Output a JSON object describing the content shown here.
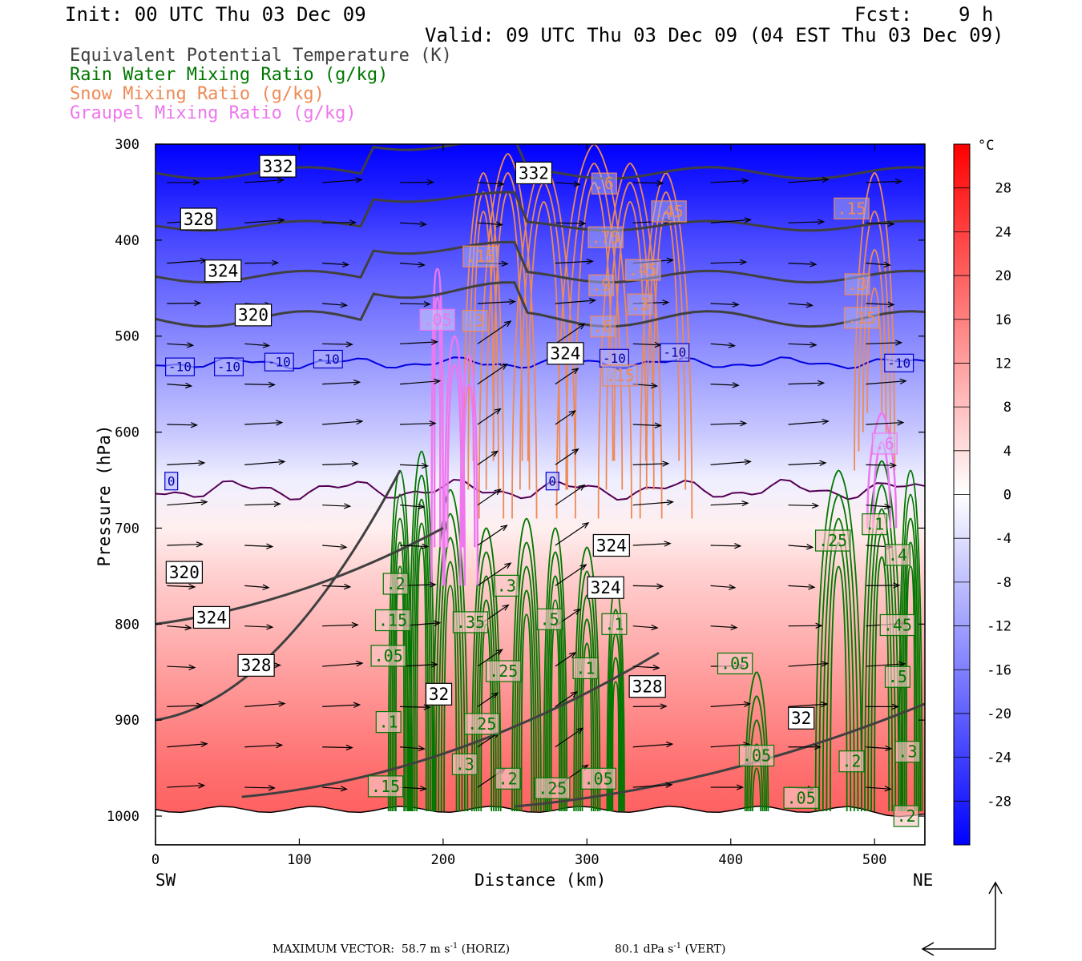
{
  "header": {
    "init": "Init: 00 UTC Thu 03 Dec 09",
    "fcst": "Fcst:    9 h",
    "valid": "Valid: 09 UTC Thu 03 Dec 09 (04 EST Thu 03 Dec 09)"
  },
  "legend": [
    {
      "label": "Equivalent Potential Temperature (K)",
      "color": "#404040"
    },
    {
      "label": "Rain Water Mixing Ratio (g/kg)",
      "color": "#007700"
    },
    {
      "label": "Snow Mixing Ratio (g/kg)",
      "color": "#ee8a55"
    },
    {
      "label": "Graupel Mixing Ratio (g/kg)",
      "color": "#ee77ee"
    }
  ],
  "chart_data": {
    "type": "heatmap",
    "xlabel": "Distance (km)",
    "ylabel": "Pressure (hPa)",
    "xlim": [
      0,
      535
    ],
    "ylim": [
      1030,
      300
    ],
    "y_scale": "linear",
    "x_ticks": [
      "0",
      "100",
      "200",
      "300",
      "400",
      "500"
    ],
    "y_ticks": [
      "300",
      "400",
      "500",
      "600",
      "700",
      "800",
      "900",
      "1000"
    ],
    "x_end_labels": {
      "left": "SW",
      "right": "NE"
    },
    "colorbar": {
      "unit": "°C",
      "ticks": [
        "28",
        "24",
        "20",
        "16",
        "12",
        "8",
        "4",
        "0",
        "-4",
        "-8",
        "-12",
        "-16",
        "-20",
        "-24",
        "-28"
      ],
      "min": -32,
      "max": 32,
      "cold_color": "#0000ff",
      "warm_color": "#ff0000",
      "neutral_color": "#ffffff"
    },
    "temperature_field": {
      "pressure_levels": [
        300,
        350,
        400,
        450,
        500,
        550,
        600,
        650,
        700,
        750,
        800,
        850,
        900,
        950,
        1000
      ],
      "temperature_c": [
        -32,
        -28,
        -23,
        -19,
        -15,
        -11,
        -7,
        -2,
        2,
        6,
        9,
        12,
        15,
        18,
        20
      ]
    },
    "zero_degree_pressure": 660,
    "minus10_pressure": 528,
    "theta_e_labels": [
      {
        "text": "332",
        "x": 85,
        "p": 323
      },
      {
        "text": "328",
        "x": 30,
        "p": 378
      },
      {
        "text": "324",
        "x": 47,
        "p": 432
      },
      {
        "text": "320",
        "x": 68,
        "p": 478
      },
      {
        "text": "332",
        "x": 263,
        "p": 330
      },
      {
        "text": "324",
        "x": 285,
        "p": 518
      },
      {
        "text": "320",
        "x": 20,
        "p": 746
      },
      {
        "text": "324",
        "x": 39,
        "p": 793
      },
      {
        "text": "328",
        "x": 70,
        "p": 843
      },
      {
        "text": "324",
        "x": 317,
        "p": 718
      },
      {
        "text": "324",
        "x": 313,
        "p": 762
      },
      {
        "text": "328",
        "x": 342,
        "p": 865
      },
      {
        "text": "32",
        "x": 197,
        "p": 873
      },
      {
        "text": "32",
        "x": 449,
        "p": 898
      }
    ],
    "isotherm_labels": [
      {
        "text": "-10",
        "x": 17,
        "p": 532
      },
      {
        "text": "-10",
        "x": 51,
        "p": 532
      },
      {
        "text": "-10",
        "x": 86,
        "p": 527
      },
      {
        "text": "-10",
        "x": 120,
        "p": 524
      },
      {
        "text": "-10",
        "x": 319,
        "p": 523
      },
      {
        "text": "-10",
        "x": 361,
        "p": 517
      },
      {
        "text": "-10",
        "x": 517,
        "p": 528
      },
      {
        "text": "0",
        "x": 11,
        "p": 651
      },
      {
        "text": "0",
        "x": 276,
        "p": 651
      }
    ],
    "snow_labels": [
      {
        "text": ".15",
        "x": 226,
        "p": 417
      },
      {
        "text": ".3",
        "x": 222,
        "p": 484
      },
      {
        "text": ".6",
        "x": 312,
        "p": 341
      },
      {
        "text": ".75",
        "x": 313,
        "p": 397
      },
      {
        "text": ".45",
        "x": 357,
        "p": 370
      },
      {
        "text": ".45",
        "x": 339,
        "p": 431
      },
      {
        "text": ".9",
        "x": 310,
        "p": 447
      },
      {
        "text": ".3",
        "x": 337,
        "p": 467
      },
      {
        "text": ".6",
        "x": 311,
        "p": 490
      },
      {
        "text": ".15",
        "x": 323,
        "p": 541
      },
      {
        "text": ".15",
        "x": 484,
        "p": 367
      },
      {
        "text": ".3",
        "x": 488,
        "p": 446
      },
      {
        "text": ".15",
        "x": 491,
        "p": 481
      }
    ],
    "graupel_labels": [
      {
        "text": ".05",
        "x": 196,
        "p": 483
      },
      {
        "text": ".6",
        "x": 507,
        "p": 612
      }
    ],
    "rain_labels": [
      {
        "text": ".2",
        "x": 167,
        "p": 758
      },
      {
        "text": ".15",
        "x": 165,
        "p": 796
      },
      {
        "text": ".05",
        "x": 162,
        "p": 833
      },
      {
        "text": ".1",
        "x": 162,
        "p": 902
      },
      {
        "text": ".15",
        "x": 160,
        "p": 969
      },
      {
        "text": ".35",
        "x": 219,
        "p": 798
      },
      {
        "text": ".3",
        "x": 244,
        "p": 760
      },
      {
        "text": ".25",
        "x": 242,
        "p": 849
      },
      {
        "text": ".25",
        "x": 227,
        "p": 904
      },
      {
        "text": ".3",
        "x": 215,
        "p": 946
      },
      {
        "text": ".2",
        "x": 245,
        "p": 961
      },
      {
        "text": ".25",
        "x": 276,
        "p": 971
      },
      {
        "text": ".5",
        "x": 274,
        "p": 795
      },
      {
        "text": ".1",
        "x": 319,
        "p": 800
      },
      {
        "text": ".1",
        "x": 299,
        "p": 846
      },
      {
        "text": ".05",
        "x": 308,
        "p": 961
      },
      {
        "text": ".05",
        "x": 403,
        "p": 841
      },
      {
        "text": ".05",
        "x": 418,
        "p": 937
      },
      {
        "text": ".05",
        "x": 449,
        "p": 981
      },
      {
        "text": ".25",
        "x": 471,
        "p": 713
      },
      {
        "text": ".4",
        "x": 516,
        "p": 728
      },
      {
        "text": ".45",
        "x": 516,
        "p": 801
      },
      {
        "text": ".5",
        "x": 516,
        "p": 855
      },
      {
        "text": ".2",
        "x": 484,
        "p": 943
      },
      {
        "text": ".3",
        "x": 523,
        "p": 933
      },
      {
        "text": ".1",
        "x": 500,
        "p": 696
      },
      {
        "text": ".2",
        "x": 522,
        "p": 1000
      }
    ]
  },
  "footer": {
    "max_vector_label": "MAXIMUM VECTOR:",
    "horiz_value": "58.7 m s",
    "horiz_sup": "-1",
    "horiz_unit": "(HORIZ)",
    "vert_value": "80.1 dPa s",
    "vert_sup": "-1",
    "vert_unit": "(VERT)"
  }
}
